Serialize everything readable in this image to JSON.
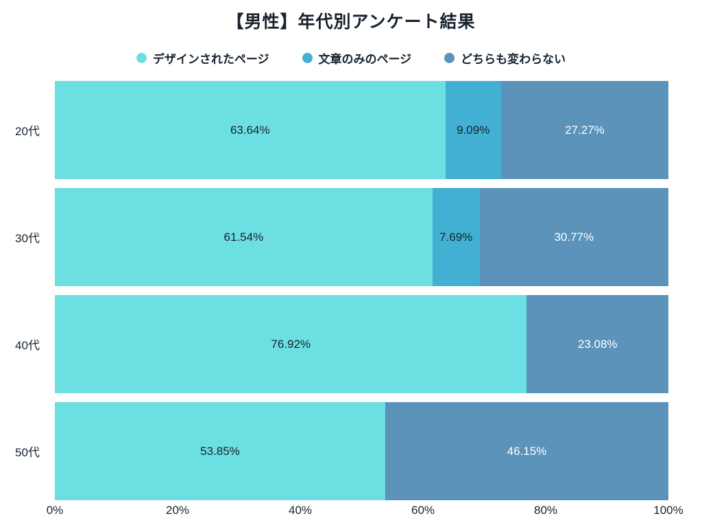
{
  "title": "【男性】年代別アンケート結果",
  "colors": {
    "background": "#ffffff",
    "text_dark": "#16222e",
    "text_light": "#ffffff",
    "series_design": "#6cdfe2",
    "series_text_only": "#41b0d3",
    "series_no_change": "#5b93ba"
  },
  "chart_data": {
    "type": "bar",
    "orientation": "horizontal",
    "stacked": true,
    "title": "【男性】年代別アンケート結果",
    "categories": [
      "20代",
      "30代",
      "40代",
      "50代"
    ],
    "series": [
      {
        "name": "デザインされたページ",
        "color": "#6cdfe2",
        "label_color": "#16222e",
        "values": [
          63.64,
          61.54,
          76.92,
          53.85
        ]
      },
      {
        "name": "文章のみのページ",
        "color": "#41b0d3",
        "label_color": "#16222e",
        "values": [
          9.09,
          7.69,
          0,
          0
        ]
      },
      {
        "name": "どちらも変わらない",
        "color": "#5b93ba",
        "label_color": "#ffffff",
        "values": [
          27.27,
          30.77,
          23.08,
          46.15
        ]
      }
    ],
    "x_ticks": [
      "0%",
      "20%",
      "40%",
      "60%",
      "80%",
      "100%"
    ],
    "xlim": [
      0,
      100
    ],
    "value_suffix": "%",
    "legend_position": "top",
    "grid": false
  }
}
